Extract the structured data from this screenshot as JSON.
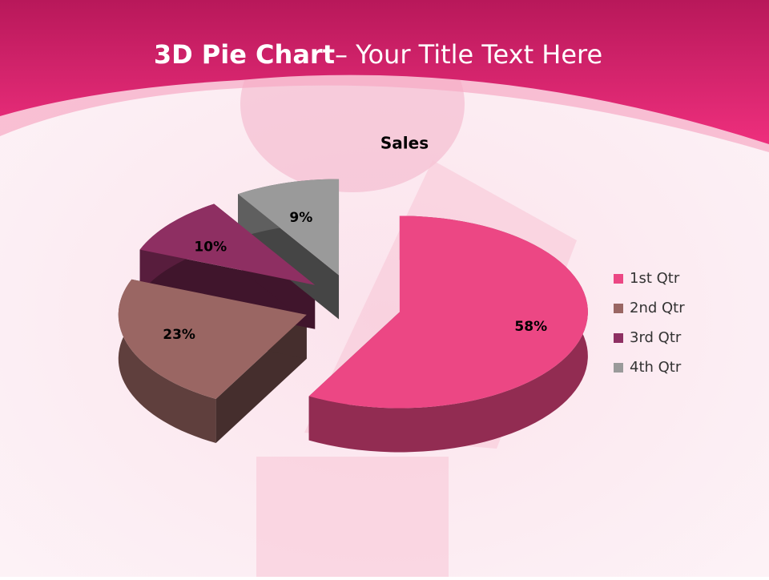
{
  "slide": {
    "title_bold": "3D Pie Chart",
    "title_rest": "– Your Title Text Here"
  },
  "chart_data": {
    "type": "pie",
    "title": "Sales",
    "categories": [
      "1st Qtr",
      "2nd Qtr",
      "3rd Qtr",
      "4th Qtr"
    ],
    "values": [
      58,
      23,
      10,
      9
    ],
    "value_labels": [
      "58%",
      "23%",
      "10%",
      "9%"
    ],
    "colors": [
      "#ec4784",
      "#9a6663",
      "#8e2f62",
      "#9a9a9a"
    ],
    "legend": "right"
  }
}
